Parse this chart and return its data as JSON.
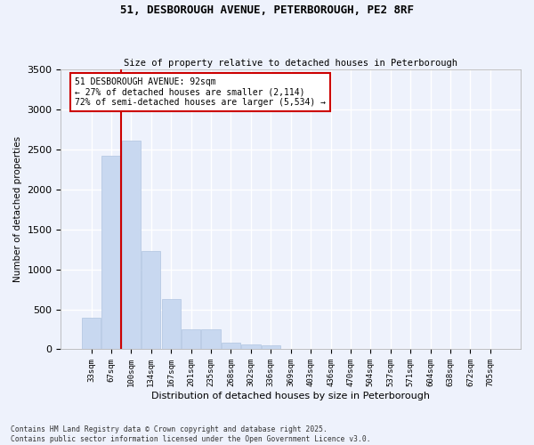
{
  "title_line1": "51, DESBOROUGH AVENUE, PETERBOROUGH, PE2 8RF",
  "title_line2": "Size of property relative to detached houses in Peterborough",
  "xlabel": "Distribution of detached houses by size in Peterborough",
  "ylabel": "Number of detached properties",
  "categories": [
    "33sqm",
    "67sqm",
    "100sqm",
    "134sqm",
    "167sqm",
    "201sqm",
    "235sqm",
    "268sqm",
    "302sqm",
    "336sqm",
    "369sqm",
    "403sqm",
    "436sqm",
    "470sqm",
    "504sqm",
    "537sqm",
    "571sqm",
    "604sqm",
    "638sqm",
    "672sqm",
    "705sqm"
  ],
  "values": [
    390,
    2420,
    2610,
    1230,
    630,
    245,
    245,
    80,
    65,
    55,
    10,
    0,
    0,
    0,
    0,
    0,
    0,
    0,
    0,
    0,
    0
  ],
  "bar_color": "#c8d8f0",
  "bar_edge_color": "#b0c4e0",
  "vline_color": "#cc0000",
  "annotation_text": "51 DESBOROUGH AVENUE: 92sqm\n← 27% of detached houses are smaller (2,114)\n72% of semi-detached houses are larger (5,534) →",
  "annotation_box_color": "#ffffff",
  "annotation_box_edge": "#cc0000",
  "bg_color": "#eef2fc",
  "plot_bg_color": "#eef2fc",
  "grid_color": "#ffffff",
  "ylim": [
    0,
    3500
  ],
  "yticks": [
    0,
    500,
    1000,
    1500,
    2000,
    2500,
    3000,
    3500
  ],
  "footnote": "Contains HM Land Registry data © Crown copyright and database right 2025.\nContains public sector information licensed under the Open Government Licence v3.0."
}
